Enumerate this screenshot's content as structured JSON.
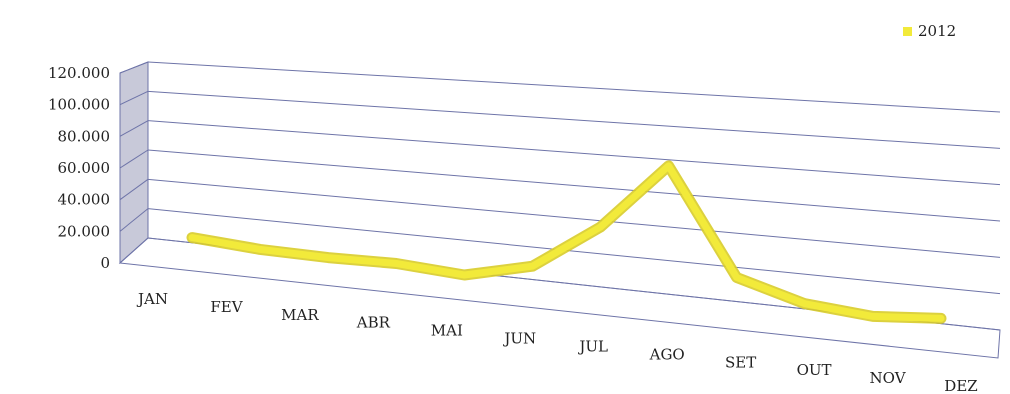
{
  "chart_data": {
    "type": "line",
    "categories": [
      "JAN",
      "FEV",
      "MAR",
      "ABR",
      "MAI",
      "JUN",
      "JUL",
      "AGO",
      "SET",
      "OUT",
      "NOV",
      "DEZ"
    ],
    "series": [
      {
        "name": "2012",
        "values": [
          7000,
          4000,
          3500,
          4500,
          2000,
          12000,
          40000,
          80000,
          18000,
          7000,
          4000,
          7000
        ]
      }
    ],
    "y_tick_labels": [
      "0",
      "20.000",
      "40.000",
      "60.000",
      "80.000",
      "100.000",
      "120.000"
    ],
    "ylim": [
      0,
      120000
    ],
    "grid": true,
    "legend_position": "top-right",
    "colors": {
      "series": "#f2ea3a",
      "grid": "#6e74a8",
      "wall": "#c8c9d9"
    }
  }
}
